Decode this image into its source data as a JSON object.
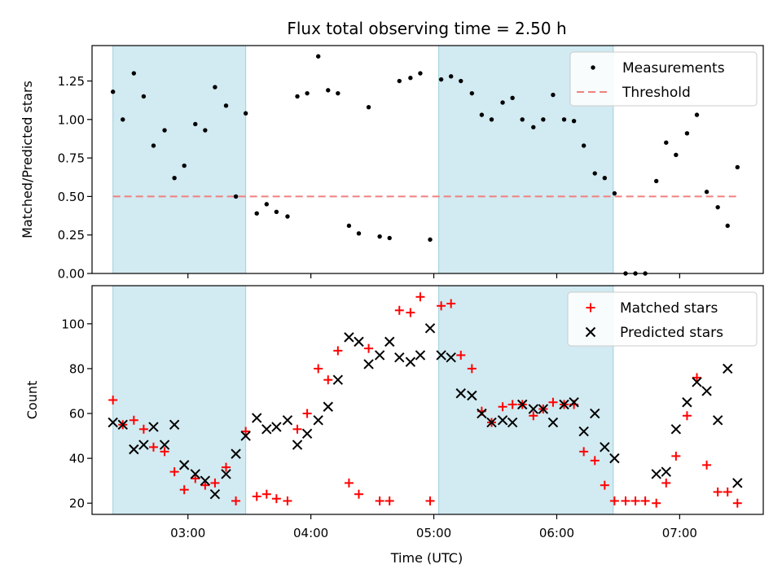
{
  "chart_data": {
    "title": "Flux total observing time = 2.50 h",
    "xlabel": "Time (UTC)",
    "x_ticks": [
      "03:00",
      "04:00",
      "05:00",
      "06:00",
      "07:00"
    ],
    "x_tick_hours": [
      3,
      4,
      5,
      6,
      7
    ],
    "xlim_hours": [
      2.22,
      7.68
    ],
    "shaded_spans_hours": [
      [
        2.39,
        3.47
      ],
      [
        5.04,
        6.46
      ]
    ],
    "shade_color": "#add8e6",
    "panels": [
      {
        "type": "scatter",
        "ylabel": "Matched/Predicted stars",
        "ylim": [
          0,
          1.48
        ],
        "y_ticks": [
          "0.00",
          "0.25",
          "0.50",
          "0.75",
          "1.00",
          "1.25"
        ],
        "y_tick_values": [
          0,
          0.25,
          0.5,
          0.75,
          1.0,
          1.25
        ],
        "legend": "top-right",
        "threshold": {
          "name": "Threshold",
          "value": 0.5,
          "x_range_hours": [
            2.39,
            7.47
          ],
          "color": "#f08080"
        },
        "series": [
          {
            "name": "Measurements",
            "color": "#000000",
            "x_hours": [
              2.39,
              2.47,
              2.56,
              2.64,
              2.72,
              2.81,
              2.89,
              2.97,
              3.06,
              3.14,
              3.22,
              3.31,
              3.39,
              3.47,
              3.56,
              3.64,
              3.72,
              3.81,
              3.89,
              3.97,
              4.06,
              4.14,
              4.22,
              4.31,
              4.39,
              4.47,
              4.56,
              4.64,
              4.72,
              4.81,
              4.89,
              4.97,
              5.06,
              5.14,
              5.22,
              5.31,
              5.39,
              5.47,
              5.56,
              5.64,
              5.72,
              5.81,
              5.89,
              5.97,
              6.06,
              6.14,
              6.22,
              6.31,
              6.39,
              6.47,
              6.56,
              6.64,
              6.72,
              6.81,
              6.89,
              6.97,
              7.06,
              7.14,
              7.22,
              7.31,
              7.39,
              7.47
            ],
            "values": [
              1.18,
              1.0,
              1.3,
              1.15,
              0.83,
              0.93,
              0.62,
              0.7,
              0.97,
              0.93,
              1.21,
              1.09,
              0.5,
              1.04,
              0.39,
              0.45,
              0.4,
              0.37,
              1.15,
              1.17,
              1.41,
              1.19,
              1.17,
              0.31,
              0.26,
              1.08,
              0.24,
              0.23,
              1.25,
              1.27,
              1.3,
              0.22,
              1.26,
              1.28,
              1.25,
              1.17,
              1.03,
              1.0,
              1.11,
              1.14,
              1.0,
              0.95,
              1.0,
              1.16,
              1.0,
              0.99,
              0.83,
              0.65,
              0.62,
              0.52,
              0.0,
              0.0,
              0.0,
              0.6,
              0.85,
              0.77,
              0.91,
              1.03,
              0.53,
              0.43,
              0.31,
              0.69
            ]
          }
        ]
      },
      {
        "type": "scatter",
        "ylabel": "Count",
        "ylim": [
          15,
          117
        ],
        "y_ticks": [
          "20",
          "40",
          "60",
          "80",
          "100"
        ],
        "y_tick_values": [
          20,
          40,
          60,
          80,
          100
        ],
        "legend": "top-right",
        "series": [
          {
            "name": "Matched stars",
            "marker": "+",
            "color": "#ff0000",
            "x_hours": [
              2.39,
              2.47,
              2.56,
              2.64,
              2.72,
              2.81,
              2.89,
              2.97,
              3.06,
              3.14,
              3.22,
              3.31,
              3.39,
              3.47,
              3.56,
              3.64,
              3.72,
              3.81,
              3.89,
              3.97,
              4.06,
              4.14,
              4.22,
              4.31,
              4.39,
              4.47,
              4.56,
              4.64,
              4.72,
              4.81,
              4.89,
              4.97,
              5.06,
              5.14,
              5.22,
              5.31,
              5.39,
              5.47,
              5.56,
              5.64,
              5.72,
              5.81,
              5.89,
              5.97,
              6.06,
              6.14,
              6.22,
              6.31,
              6.39,
              6.47,
              6.56,
              6.64,
              6.72,
              6.81,
              6.89,
              6.97,
              7.06,
              7.14,
              7.22,
              7.31,
              7.39,
              7.47
            ],
            "values": [
              66,
              55,
              57,
              53,
              45,
              43,
              34,
              26,
              31,
              28,
              29,
              36,
              21,
              52,
              23,
              24,
              22,
              21,
              53,
              60,
              80,
              75,
              88,
              29,
              24,
              89,
              21,
              21,
              106,
              105,
              112,
              21,
              108,
              109,
              86,
              80,
              61,
              56,
              63,
              64,
              64,
              59,
              62,
              65,
              64,
              64,
              43,
              39,
              28,
              21,
              21,
              21,
              21,
              20,
              29,
              41,
              59,
              76,
              37,
              25,
              25,
              20
            ]
          },
          {
            "name": "Predicted stars",
            "marker": "x",
            "color": "#000000",
            "x_hours": [
              2.39,
              2.47,
              2.56,
              2.64,
              2.72,
              2.81,
              2.89,
              2.97,
              3.06,
              3.14,
              3.22,
              3.31,
              3.39,
              3.47,
              3.56,
              3.64,
              3.72,
              3.81,
              3.89,
              3.97,
              4.06,
              4.14,
              4.22,
              4.31,
              4.39,
              4.47,
              4.56,
              4.64,
              4.72,
              4.81,
              4.89,
              4.97,
              5.06,
              5.14,
              5.22,
              5.31,
              5.39,
              5.47,
              5.56,
              5.64,
              5.72,
              5.81,
              5.89,
              5.97,
              6.06,
              6.14,
              6.22,
              6.31,
              6.39,
              6.47,
              6.81,
              6.89,
              6.97,
              7.06,
              7.14,
              7.22,
              7.31,
              7.39,
              7.47
            ],
            "values": [
              56,
              55,
              44,
              46,
              54,
              46,
              55,
              37,
              33,
              30,
              24,
              33,
              42,
              50,
              58,
              53,
              54,
              57,
              46,
              51,
              57,
              63,
              75,
              94,
              92,
              82,
              86,
              92,
              85,
              83,
              86,
              98,
              86,
              85,
              69,
              68,
              60,
              56,
              57,
              56,
              64,
              62,
              62,
              56,
              64,
              65,
              52,
              60,
              45,
              40,
              33,
              34,
              53,
              65,
              74,
              70,
              57,
              80,
              29
            ]
          }
        ]
      }
    ]
  }
}
